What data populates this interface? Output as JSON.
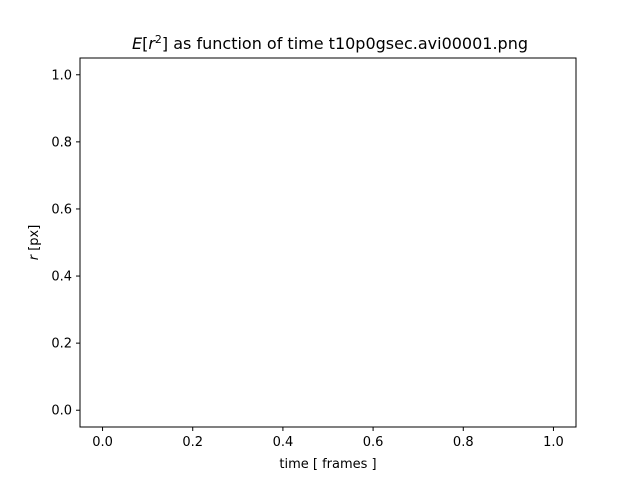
{
  "chart_data": {
    "type": "line",
    "title": "E[r2] as function of time t10p0gsec.avi00001.png",
    "title_parts": {
      "e": "E",
      "open": "[",
      "r": "r",
      "sup": "2",
      "rest": "] as function of time t10p0gsec.avi00001.png"
    },
    "xlabel": "time [ frames ]",
    "ylabel": "r [px]",
    "ylabel_parts": {
      "var": "r",
      "unit": " [px]"
    },
    "xlim": [
      -0.05,
      1.05
    ],
    "ylim": [
      -0.05,
      1.05
    ],
    "xticks": [
      0.0,
      0.2,
      0.4,
      0.6,
      0.8,
      1.0
    ],
    "yticks": [
      0.0,
      0.2,
      0.4,
      0.6,
      0.8,
      1.0
    ],
    "xtick_labels": [
      "0.0",
      "0.2",
      "0.4",
      "0.6",
      "0.8",
      "1.0"
    ],
    "ytick_labels": [
      "0.0",
      "0.2",
      "0.4",
      "0.6",
      "0.8",
      "1.0"
    ],
    "series": [],
    "grid": false
  }
}
